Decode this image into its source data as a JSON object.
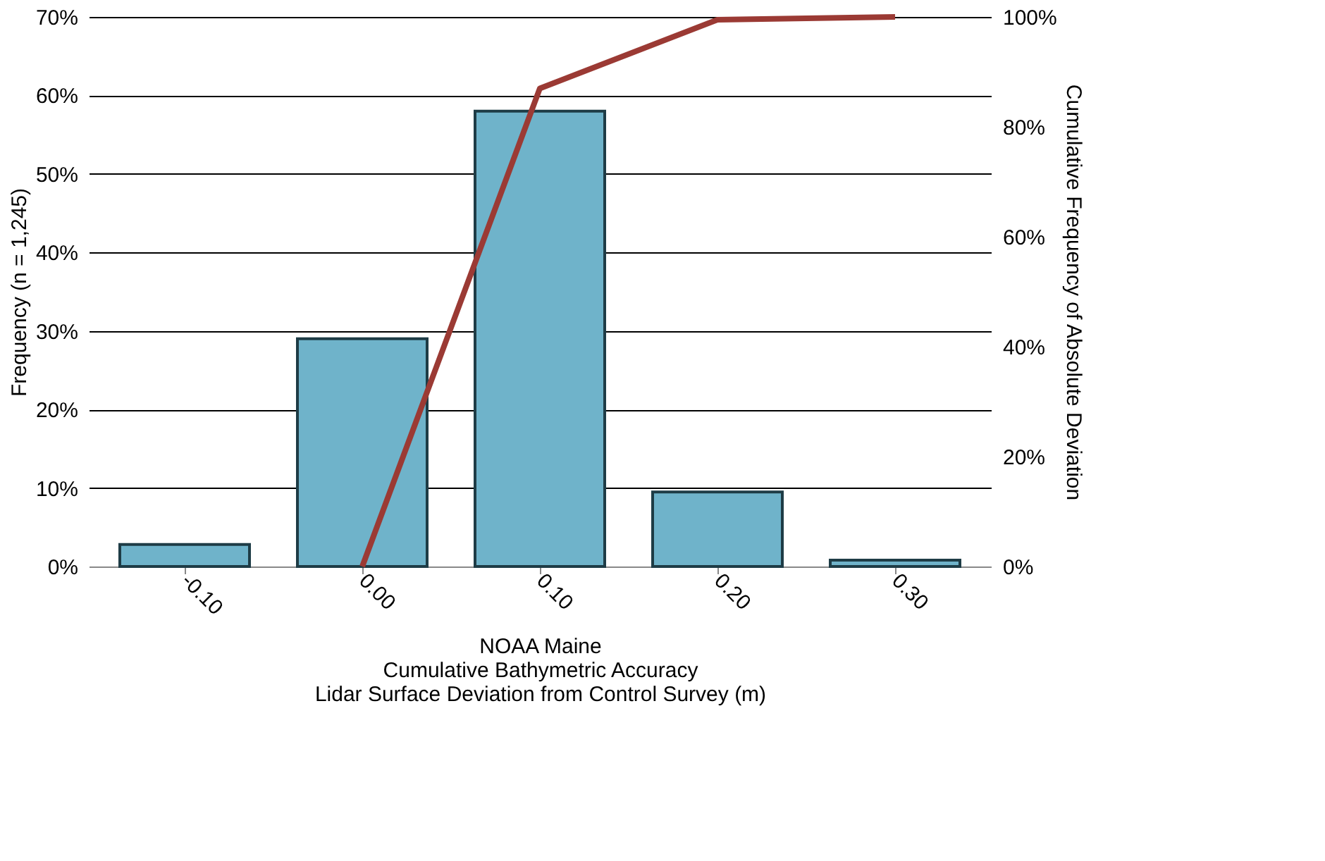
{
  "chart_data": {
    "type": "bar",
    "title": "NOAA Maine",
    "subtitle": "Cumulative Bathymetric Accuracy",
    "xlabel": "Lidar Surface Deviation from Control Survey (m)",
    "ylabel": "Frequency (n = 1,245)",
    "y2label": "Cumulative Frequency of Absolute Deviation",
    "categories": [
      "-0.10",
      "0.00",
      "0.10",
      "0.20",
      "0.30"
    ],
    "series": [
      {
        "color": "#6fb3ca",
        "values": [
          2.8,
          29,
          58,
          9.5,
          0.8
        ]
      },
      {
        "type": "line",
        "axis": "y2",
        "color": "#9b3a34",
        "values": [
          null,
          0,
          87,
          99.5,
          100
        ]
      }
    ],
    "ylim": [
      0,
      70
    ],
    "yticks": [
      {
        "value": 0,
        "label": "0%"
      },
      {
        "value": 10,
        "label": "10%"
      },
      {
        "value": 20,
        "label": "20%"
      },
      {
        "value": 30,
        "label": "30%"
      },
      {
        "value": 40,
        "label": "40%"
      },
      {
        "value": 50,
        "label": "50%"
      },
      {
        "value": 60,
        "label": "60%"
      },
      {
        "value": 70,
        "label": "70%"
      }
    ],
    "y2lim": [
      0,
      100
    ],
    "y2ticks": [
      {
        "value": 0,
        "label": "0%"
      },
      {
        "value": 20,
        "label": "20%"
      },
      {
        "value": 40,
        "label": "40%"
      },
      {
        "value": 60,
        "label": "60%"
      },
      {
        "value": 80,
        "label": "80%"
      },
      {
        "value": 100,
        "label": "100%"
      }
    ],
    "grid": "y"
  }
}
